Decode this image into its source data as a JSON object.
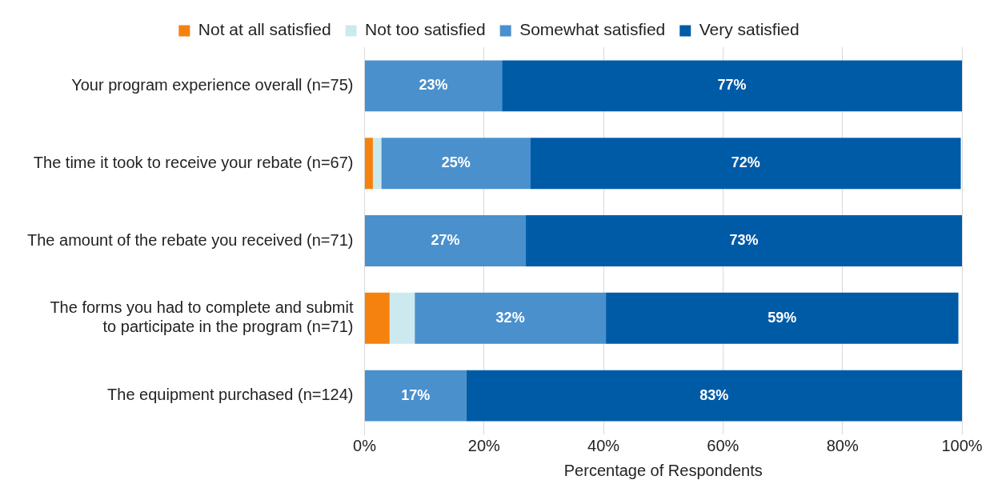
{
  "chart_data": {
    "type": "bar",
    "orientation": "horizontal",
    "stacked": true,
    "xlabel": "Percentage of Respondents",
    "categories": [
      "Your program experience overall (n=75)",
      "The time it took to receive your rebate (n=67)",
      "The amount of the rebate you received (n=71)",
      "The forms you had to complete and submit\nto participate in the program (n=71)",
      "The equipment purchased (n=124)"
    ],
    "series": [
      {
        "name": "Not at all satisfied",
        "color": "#f5820f",
        "values": [
          0,
          1.4,
          0,
          4.2,
          0
        ],
        "value_labels": [
          null,
          null,
          null,
          null,
          null
        ]
      },
      {
        "name": "Not too satisfied",
        "color": "#cde9f0",
        "values": [
          0,
          1.4,
          0,
          4.2,
          0
        ],
        "value_labels": [
          null,
          null,
          null,
          null,
          null
        ]
      },
      {
        "name": "Somewhat satisfied",
        "color": "#4a90cd",
        "values": [
          23,
          25,
          27,
          32,
          17
        ],
        "value_labels": [
          "23%",
          "25%",
          "27%",
          "32%",
          "17%"
        ]
      },
      {
        "name": "Very satisfied",
        "color": "#005ba7",
        "values": [
          77,
          72,
          73,
          59,
          83
        ],
        "value_labels": [
          "77%",
          "72%",
          "73%",
          "59%",
          "83%"
        ]
      }
    ],
    "xlim": [
      0,
      100
    ],
    "xticks": [
      {
        "value": 0,
        "label": "0%"
      },
      {
        "value": 20,
        "label": "20%"
      },
      {
        "value": 40,
        "label": "40%"
      },
      {
        "value": 60,
        "label": "60%"
      },
      {
        "value": 80,
        "label": "80%"
      },
      {
        "value": 100,
        "label": "100%"
      }
    ],
    "grid": "x",
    "legend": "top"
  }
}
